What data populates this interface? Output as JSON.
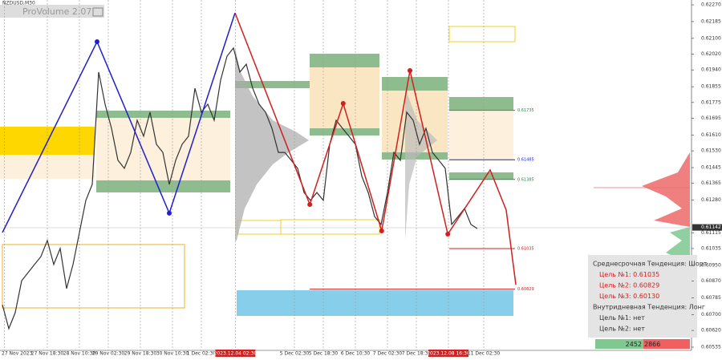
{
  "chart_data": {
    "type": "line",
    "symbol": "NZDUSD,M30",
    "indicator": "ProVolume 2.07",
    "ylim": [
      0.60535,
      0.6227
    ],
    "yticks": [
      {
        "value": 0.6227,
        "label": "0.62270"
      },
      {
        "value": 0.62185,
        "label": "0.62185"
      },
      {
        "value": 0.621,
        "label": "0.62100"
      },
      {
        "value": 0.6202,
        "label": "0.62020"
      },
      {
        "value": 0.6194,
        "label": "0.61940"
      },
      {
        "value": 0.61855,
        "label": "0.61855"
      },
      {
        "value": 0.61775,
        "label": "0.61775"
      },
      {
        "value": 0.61695,
        "label": "0.61695"
      },
      {
        "value": 0.6161,
        "label": "0.61610"
      },
      {
        "value": 0.6153,
        "label": "0.61530"
      },
      {
        "value": 0.61445,
        "label": "0.61445"
      },
      {
        "value": 0.61365,
        "label": "0.61365"
      },
      {
        "value": 0.6128,
        "label": "0.61280"
      },
      {
        "value": 0.61115,
        "label": "0.61115"
      },
      {
        "value": 0.61035,
        "label": "0.61035"
      },
      {
        "value": 0.6095,
        "label": "0.60950"
      },
      {
        "value": 0.6087,
        "label": "0.60870"
      },
      {
        "value": 0.60785,
        "label": "0.60785"
      },
      {
        "value": 0.607,
        "label": "0.60700"
      },
      {
        "value": 0.6062,
        "label": "0.60620"
      },
      {
        "value": 0.60535,
        "label": "0.60535"
      }
    ],
    "current_price": 0.61142,
    "xlim": [
      0,
      107
    ],
    "xticks": [
      {
        "value": 0.3,
        "label": "27 Nov 2023"
      },
      {
        "value": 7,
        "label": "27 Nov 18:30"
      },
      {
        "value": 12,
        "label": "28 Nov 10:30"
      },
      {
        "value": 16.5,
        "label": "29 Nov 02:30"
      },
      {
        "value": 21.5,
        "label": "29 Nov 18:30"
      },
      {
        "value": 26.5,
        "label": "30 Nov 10:30"
      },
      {
        "value": 31,
        "label": "1 Dec 02:30"
      },
      {
        "value": 36.3,
        "label": "2023.12.04 02:30"
      },
      {
        "value": 45.5,
        "label": "5 Dec 02:30"
      },
      {
        "value": 50,
        "label": "5 Dec 18:30"
      },
      {
        "value": 55,
        "label": "6 Dec 10:30"
      },
      {
        "value": 60,
        "label": "7 Dec 02:30"
      },
      {
        "value": 64.5,
        "label": "7 Dec 18:30"
      },
      {
        "value": 69.5,
        "label": "2023.12.08 16:30"
      },
      {
        "value": 75,
        "label": "11 Dec 02:30"
      }
    ],
    "price": {
      "color": "#333333",
      "values": [
        0.6075,
        0.60629,
        0.6071,
        0.60872,
        0.60913,
        0.60954,
        0.60994,
        0.61076,
        0.60954,
        0.61035,
        0.60832,
        0.60954,
        0.61116,
        0.61279,
        0.6136,
        0.61929,
        0.61766,
        0.61644,
        0.61482,
        0.61441,
        0.61522,
        0.61685,
        0.61604,
        0.61726,
        0.61563,
        0.61522,
        0.6136,
        0.61482,
        0.61563,
        0.61604,
        0.61847,
        0.61726,
        0.61766,
        0.61685,
        0.61888,
        0.6201,
        0.62051,
        0.61929,
        0.61969,
        0.61847,
        0.61766,
        0.61726,
        0.61644,
        0.61522,
        0.61522,
        0.61482,
        0.61441,
        0.61319,
        0.61279,
        0.61319,
        0.61279,
        0.61563,
        0.61685,
        0.61644,
        0.61604,
        0.61563,
        0.61401,
        0.61319,
        0.61197,
        0.61157,
        0.61319,
        0.61522,
        0.61482,
        0.61726,
        0.61685,
        0.61563,
        0.61644,
        0.61522,
        0.61482,
        0.61441,
        0.61157,
        0.61197,
        0.61238,
        0.61157,
        0.61136
      ]
    },
    "zigzag": [
      {
        "color": "#1f1fd0",
        "x": [
          0,
          14.75,
          26,
          36.25
        ],
        "values": [
          0.61116,
          0.62083,
          0.61214,
          0.62229
        ]
      },
      {
        "color": "#d01f1f",
        "x": [
          36.25,
          47.9,
          53.1,
          59.1,
          63.5,
          69.4,
          76,
          78.5,
          80
        ],
        "values": [
          0.62229,
          0.61258,
          0.6177,
          0.61124,
          0.61937,
          0.61108,
          0.61433,
          0.6123,
          0.60852
        ]
      }
    ],
    "levels": [
      0.61735,
      0.61485,
      0.61385,
      0.61035,
      0.60829
    ],
    "panel": {
      "lines": [
        "Среднесрочная Тенденция: Шорт",
        "Цель №1: 0.61035",
        "Цель №2: 0.60829",
        "Цель №3: 0.60130",
        "Внутридневная Тенденция: Лонг",
        "Цель №1: нет",
        "Цель №2: нет"
      ],
      "footer": [
        "2452",
        "2866"
      ]
    }
  }
}
